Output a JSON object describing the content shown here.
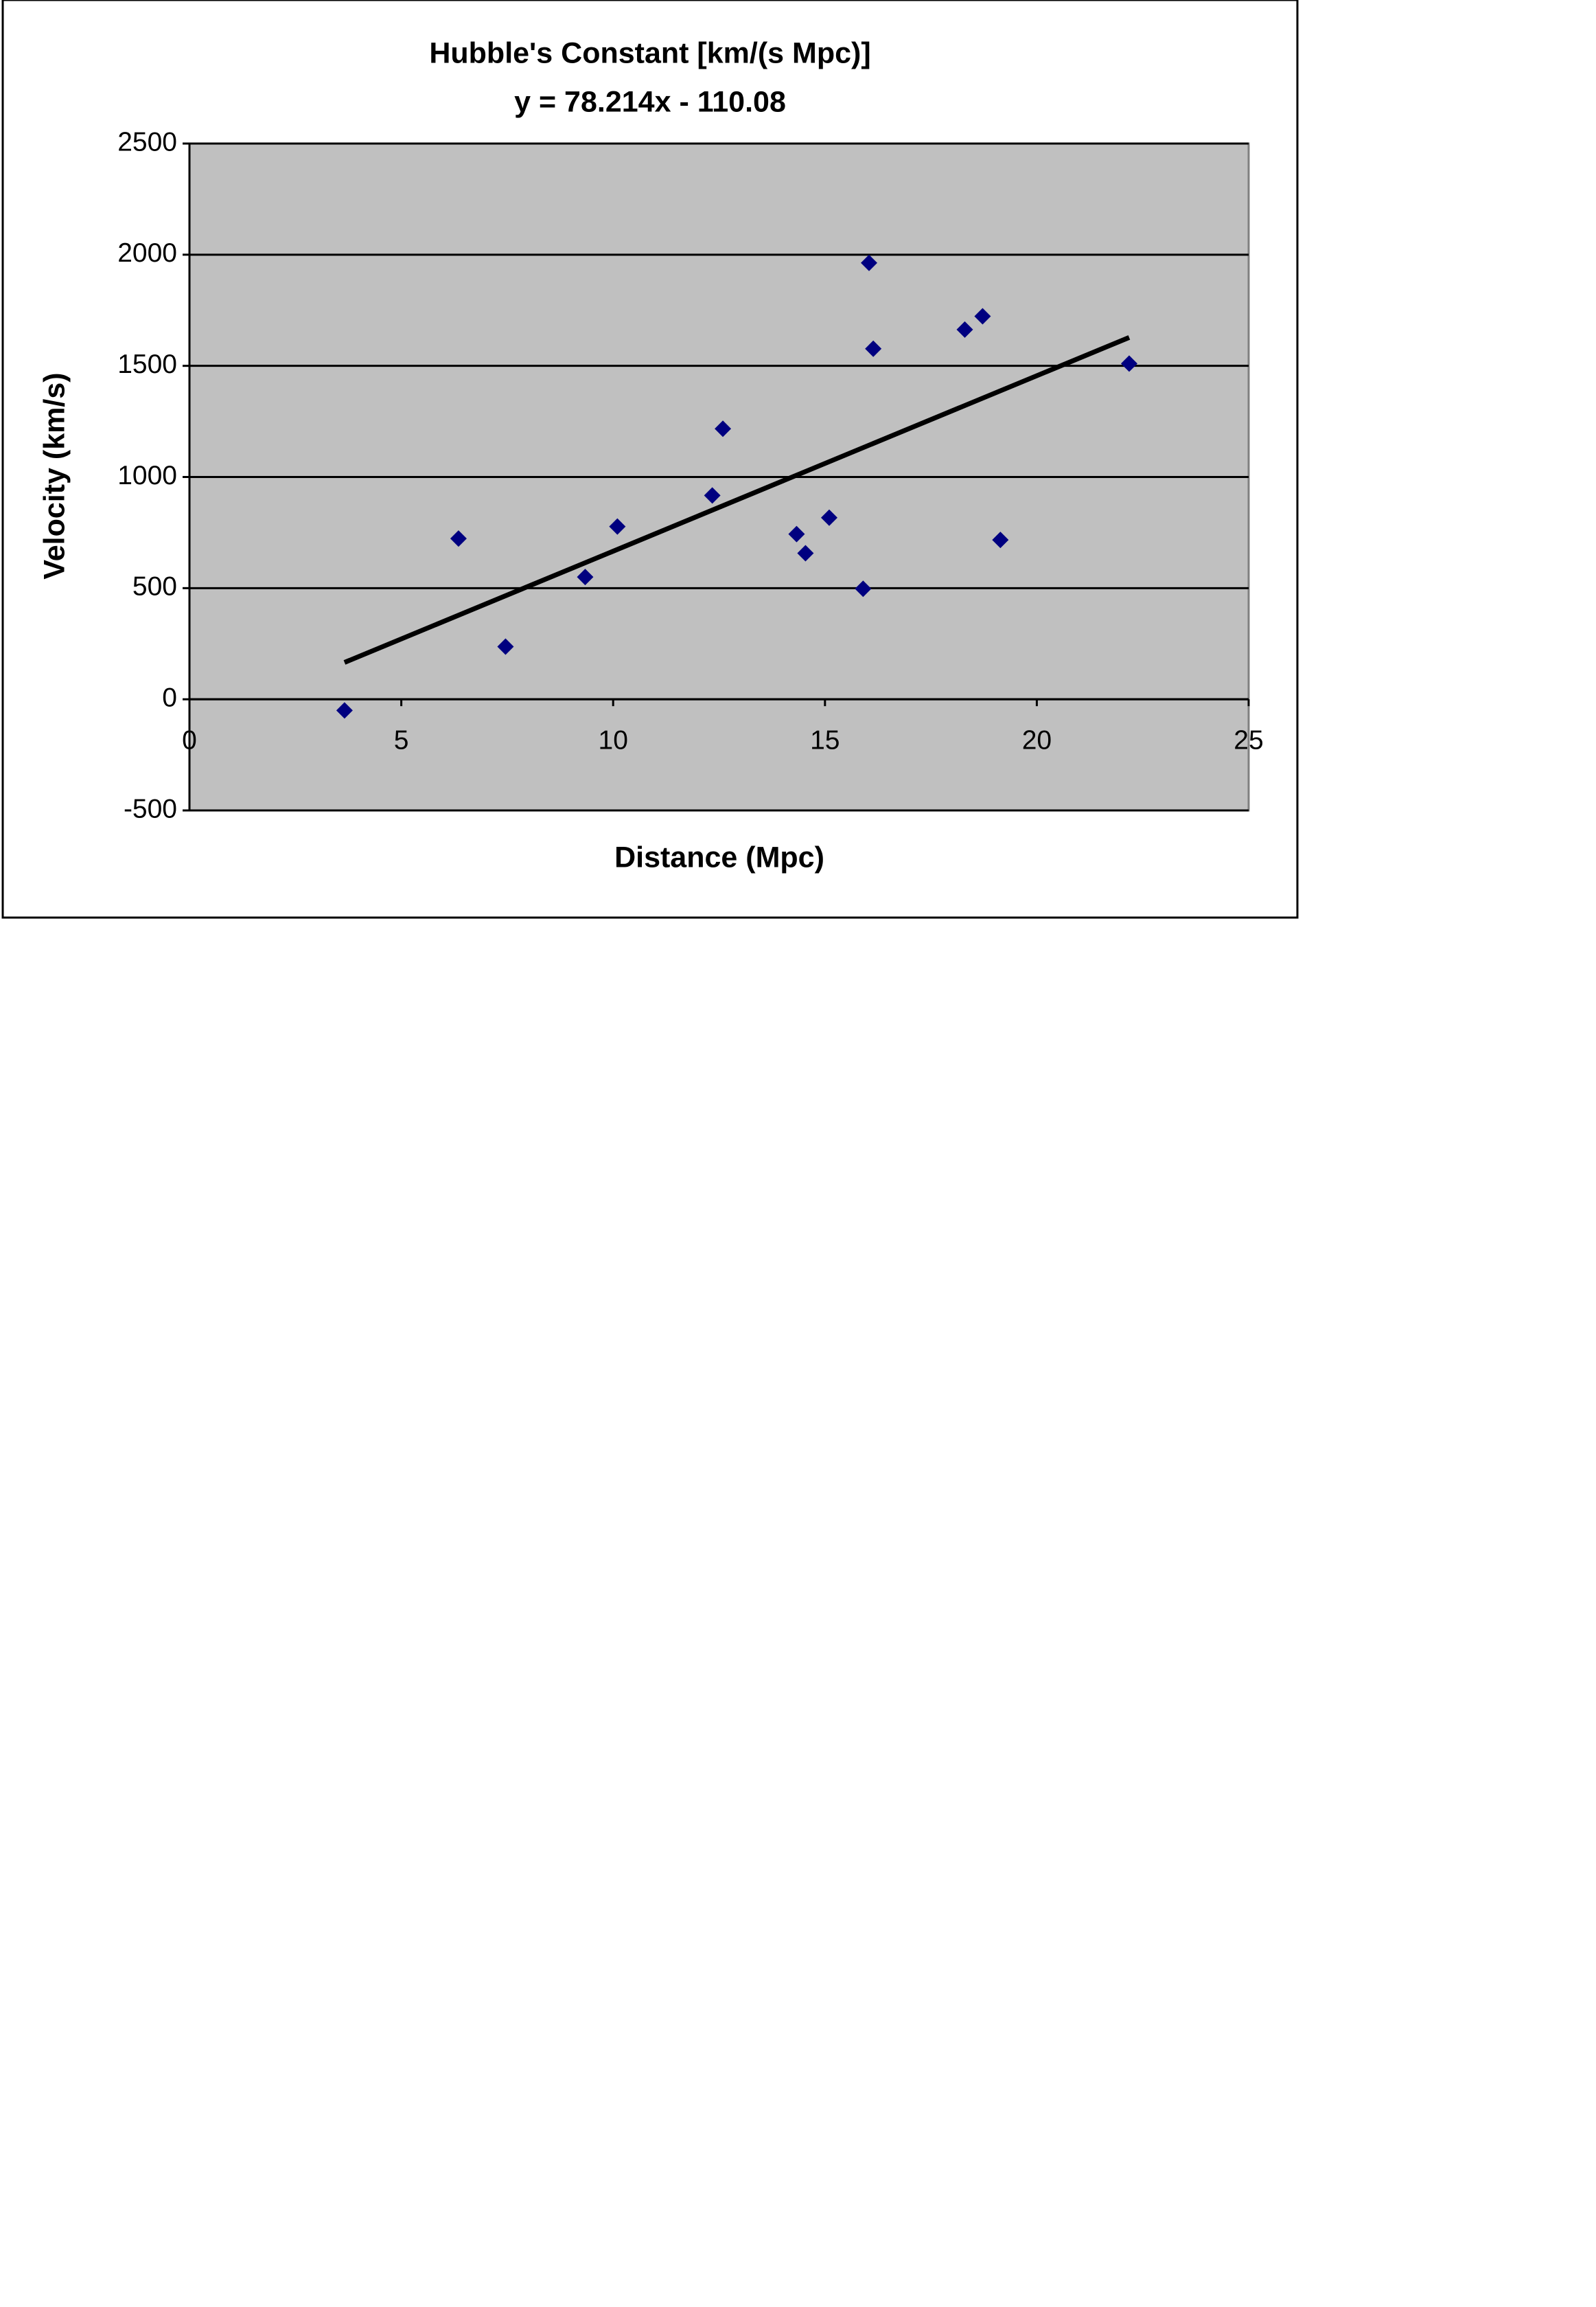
{
  "chart_data": {
    "type": "scatter",
    "title": "Hubble's Constant [km/(s Mpc)]",
    "subtitle": "y = 78.214x - 110.08",
    "x_label": "Distance (Mpc)",
    "y_label": "Velocity (km/s)",
    "series": [
      {
        "color": "#000080",
        "x": [
          3.66,
          6.35,
          7.46,
          9.34,
          10.1,
          12.34,
          12.59,
          14.33,
          14.54,
          15.1,
          15.9,
          16.04,
          16.14,
          18.3,
          18.72,
          19.14,
          22.18
        ],
        "values": [
          -50,
          723,
          237,
          550,
          777,
          917,
          1217,
          743,
          657,
          817,
          497,
          1963,
          1577,
          1663,
          1723,
          717,
          1510
        ]
      }
    ],
    "trendline": true,
    "xlim": [
      0,
      25
    ],
    "xticks": [
      0,
      5,
      10,
      15,
      20,
      25
    ],
    "ylim": [
      -500,
      2500
    ],
    "yticks": [
      -500,
      0,
      500,
      1000,
      1500,
      2000,
      2500
    ],
    "grid": true,
    "background": "#c0c0c0"
  }
}
